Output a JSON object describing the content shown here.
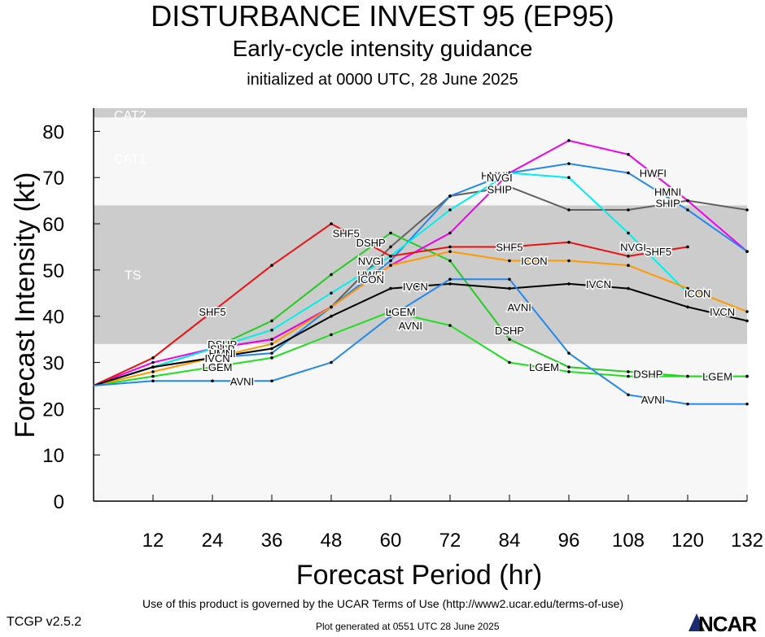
{
  "header": {
    "title": "DISTURBANCE INVEST 95 (EP95)",
    "subtitle": "Early-cycle intensity guidance",
    "init": "initialized at 0000 UTC, 28 June 2025"
  },
  "footer": {
    "terms": "Use of this product is governed by the UCAR Terms of Use (http://www2.ucar.edu/terms-of-use)",
    "version": "TCGP v2.5.2",
    "generated": "Plot generated at 0551 UTC   28 June 2025",
    "logo": "NCAR"
  },
  "chart_data": {
    "type": "line",
    "xlabel": "Forecast Period (hr)",
    "ylabel": "Forecast Intensity (kt)",
    "xlim": [
      0,
      132
    ],
    "ylim": [
      0,
      85
    ],
    "xticks": [
      12,
      24,
      36,
      48,
      60,
      72,
      84,
      96,
      108,
      120,
      132
    ],
    "yticks": [
      0,
      10,
      20,
      30,
      40,
      50,
      60,
      70,
      80
    ],
    "bands": [
      {
        "name": "TS",
        "from": 34,
        "to": 64,
        "color": "#cccccc"
      },
      {
        "name": "CAT1",
        "from": 64,
        "to": 83,
        "color": "#f7f7f7"
      },
      {
        "name": "CAT2",
        "from": 83,
        "to": 85,
        "color": "#cccccc"
      }
    ],
    "series": [
      {
        "name": "SHIP",
        "color": "#606060",
        "x": [
          0,
          12,
          24,
          36,
          48,
          60,
          72,
          84,
          96,
          108,
          120,
          132
        ],
        "y": [
          25,
          29,
          33,
          35,
          42,
          55,
          66,
          68,
          63,
          63,
          65,
          63
        ]
      },
      {
        "name": "DSHP",
        "color": "#22cc22",
        "x": [
          0,
          12,
          24,
          36,
          48,
          60,
          72,
          84,
          96,
          108,
          120,
          132
        ],
        "y": [
          25,
          29,
          33,
          39,
          49,
          58,
          52,
          35,
          29,
          28,
          27,
          27
        ]
      },
      {
        "name": "LGEM",
        "color": "#22dd22",
        "x": [
          0,
          12,
          24,
          36,
          48,
          60,
          72,
          84,
          96,
          108,
          120,
          132
        ],
        "y": [
          25,
          27,
          29,
          31,
          36,
          41,
          38,
          30,
          28,
          27,
          27,
          27
        ]
      },
      {
        "name": "HWFI",
        "color": "#ee00ee",
        "x": [
          0,
          12,
          24,
          36,
          48,
          60,
          72,
          84,
          96,
          108,
          120,
          132
        ],
        "y": [
          25,
          30,
          33,
          35,
          42,
          51,
          58,
          71,
          78,
          75,
          65,
          54
        ]
      },
      {
        "name": "HMNI",
        "color": "#2288ee",
        "x": [
          0,
          12,
          24,
          36,
          48,
          60,
          72,
          84,
          96,
          108,
          120,
          132
        ],
        "y": [
          25,
          29,
          31,
          32,
          42,
          52,
          66,
          71,
          73,
          71,
          63,
          54
        ]
      },
      {
        "name": "NVGI",
        "color": "#00eeee",
        "x": [
          0,
          12,
          24,
          36,
          48,
          60,
          72,
          84,
          96,
          108,
          120
        ],
        "y": [
          25,
          29,
          33,
          37,
          45,
          53,
          63,
          71,
          70,
          58,
          45
        ]
      },
      {
        "name": "SHF5",
        "color": "#ee1111",
        "x": [
          0,
          12,
          24,
          36,
          48,
          60,
          72,
          84,
          96,
          108,
          120
        ],
        "y": [
          25,
          31,
          41,
          51,
          60,
          53,
          55,
          55,
          56,
          53,
          55
        ]
      },
      {
        "name": "ICON",
        "color": "#ff9900",
        "x": [
          0,
          12,
          24,
          36,
          48,
          60,
          72,
          84,
          96,
          108,
          120,
          132
        ],
        "y": [
          25,
          28,
          31,
          34,
          42,
          51,
          54,
          52,
          52,
          51,
          46,
          41
        ]
      },
      {
        "name": "IVCN",
        "color": "#000000",
        "x": [
          0,
          12,
          24,
          36,
          48,
          60,
          72,
          84,
          96,
          108,
          120,
          132
        ],
        "y": [
          25,
          29,
          31,
          33,
          40,
          46,
          47,
          46,
          47,
          46,
          42,
          39
        ]
      },
      {
        "name": "AVNI",
        "color": "#2288ee",
        "x": [
          0,
          12,
          24,
          36,
          48,
          60,
          72,
          84,
          96,
          108,
          120,
          132
        ],
        "y": [
          25,
          26,
          26,
          26,
          30,
          40,
          48,
          48,
          32,
          23,
          21,
          21
        ]
      }
    ],
    "labels": [
      {
        "text": "SHF5",
        "series": "SHF5",
        "x": 24,
        "y": 41
      },
      {
        "text": "SHF5",
        "series": "SHF5",
        "x": 51,
        "y": 58
      },
      {
        "text": "SHF5",
        "series": "SHF5",
        "x": 84,
        "y": 55
      },
      {
        "text": "SHF5",
        "series": "SHF5",
        "x": 114,
        "y": 54
      },
      {
        "text": "DSHP",
        "series": "DSHP",
        "x": 84,
        "y": 37
      },
      {
        "text": "DSHP",
        "series": "DSHP",
        "x": 112,
        "y": 27.5
      },
      {
        "text": "LGEM",
        "series": "LGEM",
        "x": 62,
        "y": 41
      },
      {
        "text": "LGEM",
        "series": "LGEM",
        "x": 91,
        "y": 29
      },
      {
        "text": "LGEM",
        "series": "LGEM",
        "x": 126,
        "y": 27
      },
      {
        "text": "AVNI",
        "series": "AVNI",
        "x": 30,
        "y": 26
      },
      {
        "text": "AVNI",
        "series": "AVNI",
        "x": 64,
        "y": 38
      },
      {
        "text": "AVNI",
        "series": "AVNI",
        "x": 86,
        "y": 42
      },
      {
        "text": "AVNI",
        "series": "AVNI",
        "x": 113,
        "y": 22
      },
      {
        "text": "ICON",
        "series": "ICON",
        "x": 89,
        "y": 52
      },
      {
        "text": "ICON",
        "series": "ICON",
        "x": 122,
        "y": 45
      },
      {
        "text": "IVCN",
        "series": "IVCN",
        "x": 65,
        "y": 46.5
      },
      {
        "text": "IVCN",
        "series": "IVCN",
        "x": 102,
        "y": 47
      },
      {
        "text": "IVCN",
        "series": "IVCN",
        "x": 127,
        "y": 41
      },
      {
        "text": "SHIP",
        "series": "SHIP",
        "x": 82,
        "y": 67.5
      },
      {
        "text": "SHIP",
        "series": "SHIP",
        "x": 116,
        "y": 64.5
      },
      {
        "text": "HWFI",
        "series": "HWFI",
        "x": 113,
        "y": 71
      },
      {
        "text": "HMNI",
        "series": "HMNI",
        "x": 116,
        "y": 67
      },
      {
        "text": "HMNI",
        "series": "HMNI",
        "x": 81,
        "y": 70.5
      },
      {
        "text": "NVGI",
        "series": "NVGI",
        "x": 82,
        "y": 70
      },
      {
        "text": "NVGI",
        "series": "NVGI",
        "x": 109,
        "y": 55
      },
      {
        "text": "NVGI",
        "series": "NVGI",
        "x": 56,
        "y": 52
      },
      {
        "text": "DSHP",
        "series": "DSHP",
        "x": 56,
        "y": 56
      },
      {
        "text": "DSHP",
        "series": "DSHP",
        "x": 26,
        "y": 34
      },
      {
        "text": "SHIP",
        "series": "SHIP",
        "x": 26,
        "y": 33
      },
      {
        "text": "HWFI",
        "series": "HWFI",
        "x": 56,
        "y": 49
      },
      {
        "text": "HMNI",
        "series": "HMNI",
        "x": 26,
        "y": 32
      },
      {
        "text": "ICON",
        "series": "ICON",
        "x": 56,
        "y": 48
      },
      {
        "text": "IVCN",
        "series": "IVCN",
        "x": 25,
        "y": 31
      },
      {
        "text": "LGEM",
        "series": "LGEM",
        "x": 25,
        "y": 29
      }
    ]
  }
}
